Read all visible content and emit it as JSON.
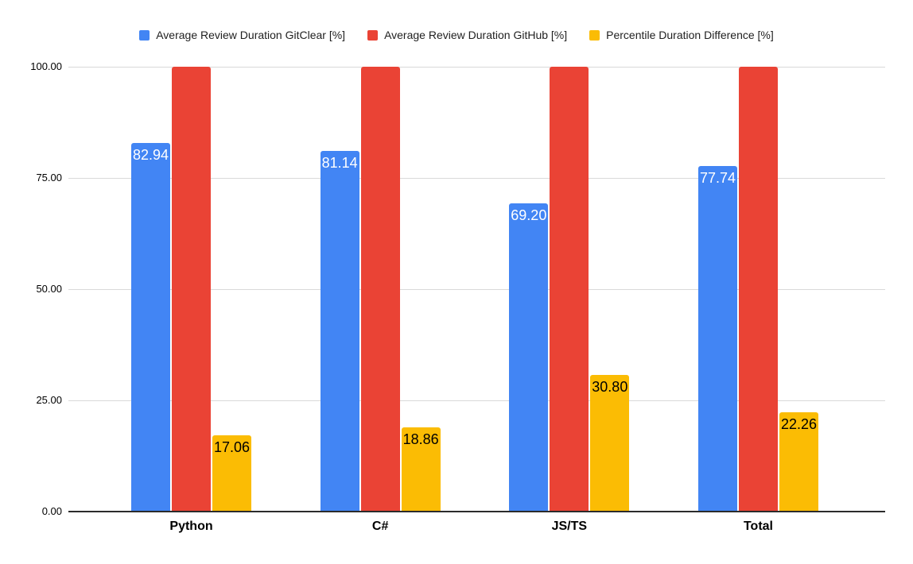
{
  "chart_data": {
    "type": "bar",
    "title": "",
    "categories": [
      "Python",
      "C#",
      "JS/TS",
      "Total"
    ],
    "series": [
      {
        "name": "Average Review Duration GitClear [%]",
        "color": "#4285F4",
        "values": [
          82.94,
          81.14,
          69.2,
          77.74
        ],
        "value_labels": [
          "82.94",
          "81.14",
          "69.20",
          "77.74"
        ],
        "show_labels": true,
        "label_color": "#ffffff"
      },
      {
        "name": "Average Review Duration GitHub [%]",
        "color": "#EA4335",
        "values": [
          100,
          100,
          100,
          100
        ],
        "value_labels": [
          "",
          "",
          "",
          ""
        ],
        "show_labels": false,
        "label_color": "#ffffff"
      },
      {
        "name": "Percentile Duration Difference [%]",
        "color": "#FBBC04",
        "values": [
          17.06,
          18.86,
          30.8,
          22.26
        ],
        "value_labels": [
          "17.06",
          "18.86",
          "30.80",
          "22.26"
        ],
        "show_labels": true,
        "label_color": "#000000"
      }
    ],
    "y_axis": {
      "min": 0,
      "max": 100,
      "tick_values": [
        0,
        25,
        50,
        75,
        100
      ],
      "tick_labels": [
        "0.00",
        "25.00",
        "50.00",
        "75.00",
        "100.00"
      ]
    },
    "legend_position": "top",
    "grid": true,
    "colors": {
      "background": "#ffffff",
      "gridline": "#d9d9d9",
      "axis_line": "#2b2b2b",
      "legend_text": "#1f1f1f",
      "tick_text": "#000000"
    }
  }
}
